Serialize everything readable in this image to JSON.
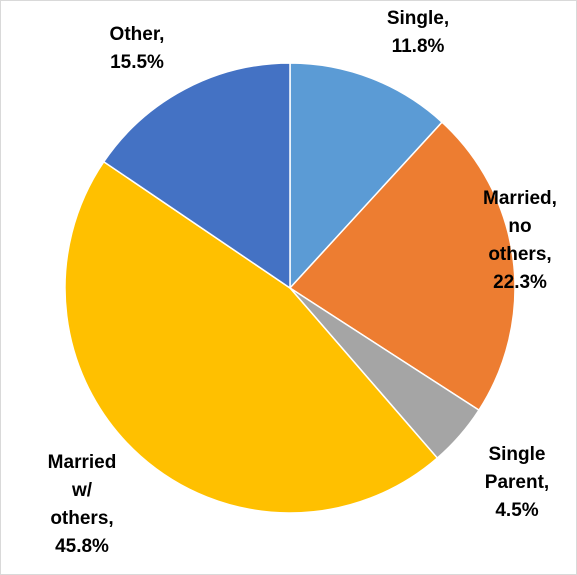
{
  "chart_data": {
    "type": "pie",
    "title": "",
    "start_angle_deg": 0,
    "direction": "clockwise",
    "slices": [
      {
        "category": "Single",
        "value": 11.8,
        "label_lines": [
          "Single,",
          "11.8%"
        ],
        "color": "#5B9BD5"
      },
      {
        "category": "Married, no others",
        "value": 22.3,
        "label_lines": [
          "Married,",
          "no",
          "others,",
          "22.3%"
        ],
        "color": "#ED7D31"
      },
      {
        "category": "Single Parent",
        "value": 4.5,
        "label_lines": [
          "Single",
          "Parent,",
          "4.5%"
        ],
        "color": "#A5A5A5"
      },
      {
        "category": "Married w/ others",
        "value": 45.8,
        "label_lines": [
          "Married",
          "w/",
          "others,",
          "45.8%"
        ],
        "color": "#FFC000"
      },
      {
        "category": "Other",
        "value": 15.5,
        "label_lines": [
          "Other,",
          "15.5%"
        ],
        "color": "#4472C4"
      }
    ],
    "legend": "none",
    "data_labels": "category and percentage, outside/edge"
  }
}
